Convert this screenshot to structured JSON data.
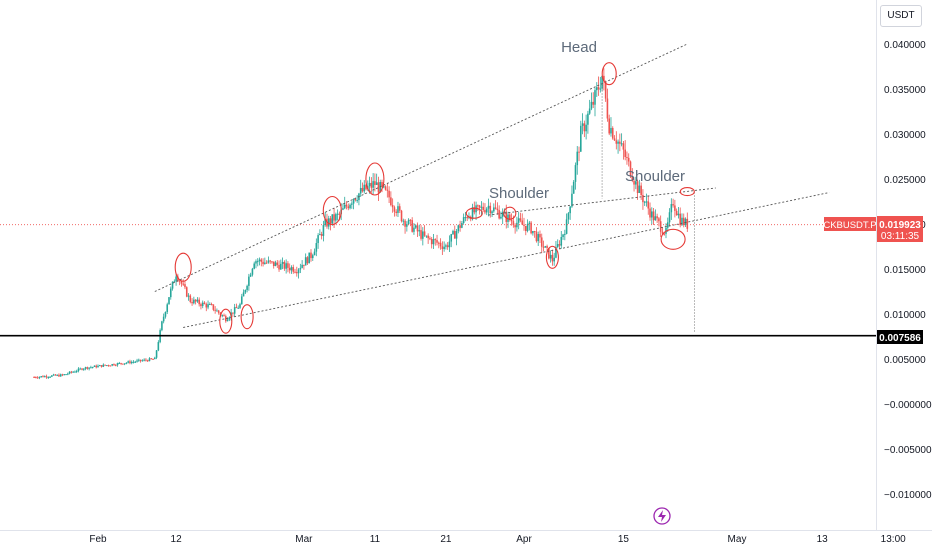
{
  "currency_label": "USDT",
  "colors": {
    "up": "#26a69a",
    "down": "#ef5350",
    "price_line": "#ef5350",
    "support": "#000000",
    "trend": "#555555",
    "annotation": "#e53935",
    "alert": "#9c27b0"
  },
  "chart_data": {
    "type": "candlestick",
    "symbol": "CKBUSDT.P",
    "last_price": "0.019923",
    "countdown": "03:11:35",
    "support_level": "0.007586",
    "y_ticks": [
      "0.040000",
      "0.035000",
      "0.030000",
      "0.025000",
      "0.020000",
      "0.015000",
      "0.010000",
      "0.005000",
      "−0.000000",
      "−0.005000",
      "−0.010000"
    ],
    "x_ticks": [
      "Feb",
      "12",
      "Mar",
      "11",
      "21",
      "Apr",
      "15",
      "May",
      "13",
      "13:00"
    ],
    "ylim": [
      -0.0125,
      0.0425
    ],
    "annotations": [
      "Head",
      "Shoulder",
      "Shoulder"
    ],
    "price_path": [
      [
        "Jan 23",
        0.003
      ],
      [
        "Jan 27",
        0.0032
      ],
      [
        "Jan 30",
        0.004
      ],
      [
        "Feb 3",
        0.0044
      ],
      [
        "Feb 6",
        0.0047
      ],
      [
        "Feb 9",
        0.005
      ],
      [
        "Feb 10",
        0.009
      ],
      [
        "Feb 11",
        0.012
      ],
      [
        "Feb 12",
        0.0145
      ],
      [
        "Feb 14",
        0.0115
      ],
      [
        "Feb 17",
        0.0108
      ],
      [
        "Feb 19",
        0.0095
      ],
      [
        "Feb 21",
        0.011
      ],
      [
        "Feb 23",
        0.016
      ],
      [
        "Feb 26",
        0.0155
      ],
      [
        "Feb 29",
        0.015
      ],
      [
        "Mar 2",
        0.0165
      ],
      [
        "Mar 4",
        0.02
      ],
      [
        "Mar 6",
        0.021
      ],
      [
        "Mar 8",
        0.023
      ],
      [
        "Mar 11",
        0.0245
      ],
      [
        "Mar 13",
        0.023
      ],
      [
        "Mar 15",
        0.0205
      ],
      [
        "Mar 18",
        0.0185
      ],
      [
        "Mar 21",
        0.0175
      ],
      [
        "Mar 24",
        0.021
      ],
      [
        "Mar 27",
        0.022
      ],
      [
        "Mar 30",
        0.0205
      ],
      [
        "Apr 2",
        0.0195
      ],
      [
        "Apr 5",
        0.016
      ],
      [
        "Apr 7",
        0.02
      ],
      [
        "Apr 9",
        0.03
      ],
      [
        "Apr 11",
        0.034
      ],
      [
        "Apr 12",
        0.0365
      ],
      [
        "Apr 13",
        0.031
      ],
      [
        "Apr 15",
        0.028
      ],
      [
        "Apr 17",
        0.024
      ],
      [
        "Apr 19",
        0.021
      ],
      [
        "Apr 21",
        0.019
      ],
      [
        "Apr 22",
        0.0225
      ],
      [
        "Apr 23",
        0.0205
      ],
      [
        "Apr 24",
        0.0199
      ]
    ],
    "trendlines": [
      {
        "name": "upper-wedge",
        "from": [
          "Feb 9",
          0.0125
        ],
        "to": [
          "Apr 24",
          0.04
        ]
      },
      {
        "name": "lower-wedge",
        "from": [
          "Feb 13",
          0.0085
        ],
        "to": [
          "May 14",
          0.0235
        ]
      },
      {
        "name": "neckline",
        "from": [
          "Mar 27",
          0.021
        ],
        "to": [
          "Apr 28",
          0.024
        ]
      }
    ],
    "price_range": {
      "date": "Apr 25",
      "from": 0.0235,
      "to": 0.008
    }
  }
}
